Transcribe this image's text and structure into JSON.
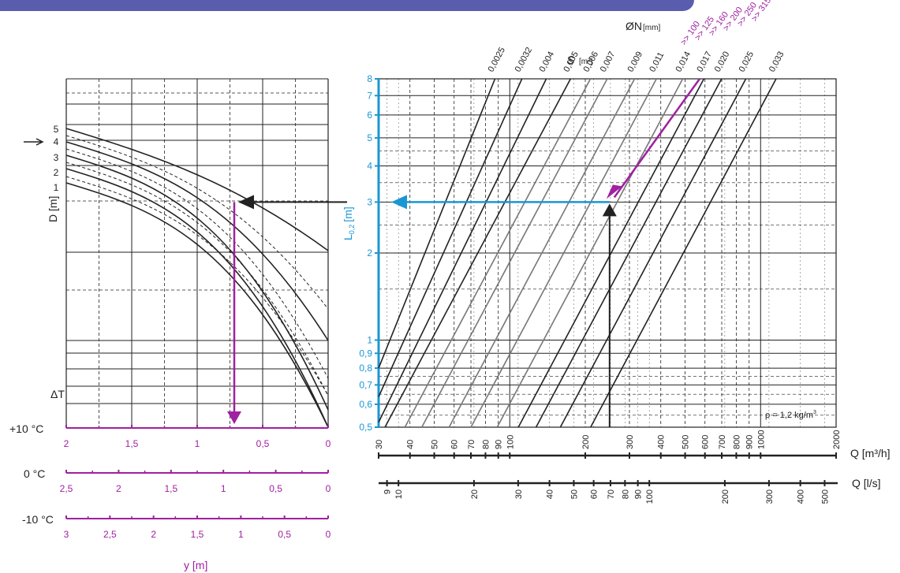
{
  "colors": {
    "accent_blue": "#1a96d4",
    "accent_magenta": "#a020a0",
    "banner": "#5a5cae",
    "grid": "#222222",
    "grey_lines": "#777777"
  },
  "header": {
    "dn_label": "ØN",
    "dn_unit": "[mm]",
    "s_label": "S",
    "s_unit": "[m²]"
  },
  "dn_values": [
    "100",
    "125",
    "160",
    "200",
    "250",
    "315"
  ],
  "dn_prefix": ">>",
  "s_values": [
    "0,0025",
    "0,0032",
    "0,004",
    "0,005",
    "0,006",
    "0,007",
    "0,009",
    "0,011",
    "0,014",
    "0,017",
    "0,020",
    "0,025",
    "0,033"
  ],
  "left_panel": {
    "d_axis_label": "D [m]",
    "d_curve_labels": [
      "1",
      "2",
      "3",
      "4",
      "5"
    ],
    "dt_label": "ΔT",
    "temp_labels": [
      "+10 °C",
      "0 °C",
      "-10 °C"
    ],
    "y_label": "y [m]",
    "scale_plus10": [
      "2",
      "1,5",
      "1",
      "0,5",
      "0"
    ],
    "scale_0": [
      "2,5",
      "2",
      "1,5",
      "1",
      "0,5",
      "0"
    ],
    "scale_minus10": [
      "3",
      "2,5",
      "2",
      "1,5",
      "1",
      "0,5",
      "0"
    ]
  },
  "right_panel": {
    "l_axis_label": "L",
    "l_axis_sub": "0,2",
    "l_axis_unit": "[m]",
    "l_ticks": [
      "8",
      "7",
      "6",
      "5",
      "4",
      "3",
      "2",
      "1",
      "0,9",
      "0,8",
      "0,7",
      "0,6",
      "0,5"
    ],
    "rho_label": "ρ = 1,2 kg/m",
    "rho_sup": "3",
    "q_m3h_label": "Q [m³/h]",
    "q_ls_label": "Q [l/s]",
    "q_m3h_ticks": [
      "30",
      "40",
      "50",
      "60",
      "70",
      "80",
      "90",
      "100",
      "200",
      "300",
      "400",
      "500",
      "600",
      "700",
      "800",
      "900",
      "1000",
      "2000"
    ],
    "q_ls_ticks": [
      "9",
      "10",
      "20",
      "30",
      "40",
      "50",
      "60",
      "70",
      "80",
      "90",
      "100",
      "200",
      "300",
      "400",
      "500"
    ]
  },
  "chart_data": {
    "type": "line",
    "title": "",
    "x_axis": {
      "label": "Q [m³/h]",
      "scale": "log",
      "range": [
        30,
        2000
      ],
      "secondary_label": "Q [l/s]"
    },
    "y_axis": {
      "label": "L0,2 [m]",
      "scale": "log",
      "range": [
        0.5,
        8
      ]
    },
    "series": [
      {
        "name": "0,0025",
        "x": [
          30,
          87.3
        ],
        "y": [
          0.8,
          8
        ]
      },
      {
        "name": "0,0032",
        "x": [
          30,
          111.8
        ],
        "y": [
          0.637,
          8
        ]
      },
      {
        "name": "0,004",
        "x": [
          30,
          139.8
        ],
        "y": [
          0.52,
          8
        ]
      },
      {
        "name": "0,005",
        "x": [
          31.8,
          174.7
        ],
        "y": [
          0.5,
          8
        ]
      },
      {
        "name": "0,006",
        "x": [
          38.2,
          209.7
        ],
        "y": [
          0.5,
          8
        ]
      },
      {
        "name": "0,007",
        "x": [
          44.6,
          244.6
        ],
        "y": [
          0.5,
          8
        ]
      },
      {
        "name": "0,009",
        "x": [
          57.3,
          314.5
        ],
        "y": [
          0.5,
          8
        ]
      },
      {
        "name": "0,011",
        "x": [
          70.0,
          384.4
        ],
        "y": [
          0.5,
          8
        ]
      },
      {
        "name": "0,014",
        "x": [
          89.1,
          489.2
        ],
        "y": [
          0.5,
          8
        ]
      },
      {
        "name": "0,017",
        "x": [
          108.2,
          594.0
        ],
        "y": [
          0.5,
          8
        ]
      },
      {
        "name": "0,020",
        "x": [
          127.3,
          698.8
        ],
        "y": [
          0.5,
          8
        ]
      },
      {
        "name": "0,025",
        "x": [
          159.1,
          873.5
        ],
        "y": [
          0.5,
          8
        ]
      },
      {
        "name": "0,033",
        "x": [
          210.1,
          1153.0
        ],
        "y": [
          0.5,
          8
        ]
      }
    ],
    "example": {
      "q_m3h": 250,
      "l02_m": 3,
      "dn": "160"
    },
    "annotations": [
      "ρ = 1,2 kg/m3"
    ]
  }
}
